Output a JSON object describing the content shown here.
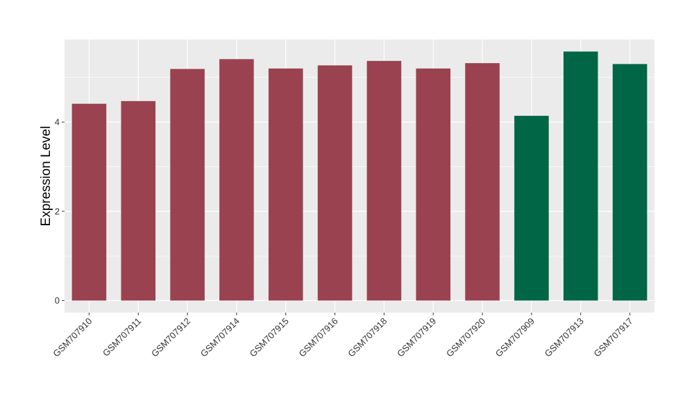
{
  "chart_data": {
    "type": "bar",
    "ylabel": "Expression Level",
    "xlabel": "",
    "ylim": [
      -0.27,
      5.85
    ],
    "yticks": [
      0,
      2,
      4
    ],
    "grid": true,
    "legend": "none",
    "categories": [
      "GSM707910",
      "GSM707911",
      "GSM707912",
      "GSM707914",
      "GSM707915",
      "GSM707916",
      "GSM707918",
      "GSM707919",
      "GSM707920",
      "GSM707909",
      "GSM707913",
      "GSM707917"
    ],
    "values": [
      4.41,
      4.47,
      5.19,
      5.41,
      5.2,
      5.27,
      5.37,
      5.2,
      5.32,
      4.14,
      5.58,
      5.3
    ],
    "groups": [
      "a",
      "a",
      "a",
      "a",
      "a",
      "a",
      "a",
      "a",
      "a",
      "b",
      "b",
      "b"
    ],
    "colors": {
      "a": "#9a4250",
      "b": "#006645"
    },
    "panel_color": "#ebebeb",
    "grid_color": "#ffffff"
  }
}
